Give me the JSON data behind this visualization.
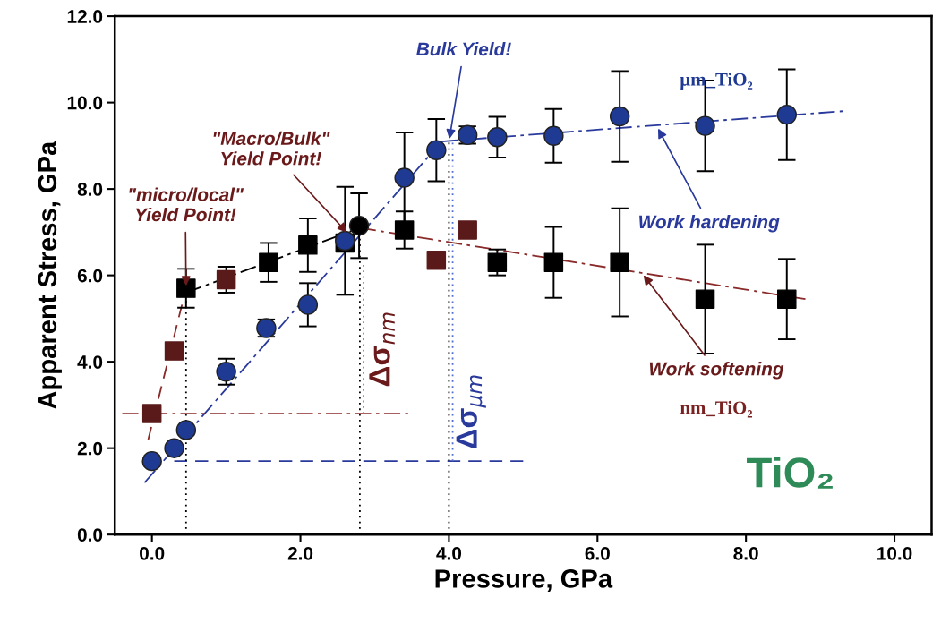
{
  "chart_data": {
    "type": "scatter",
    "xlabel": "Pressure, GPa",
    "ylabel": "Apparent Stress, GPa",
    "xlim": [
      -0.5,
      10.5
    ],
    "ylim": [
      0,
      12
    ],
    "xticks": [
      {
        "value": 0,
        "label": "0.0"
      },
      {
        "value": 2,
        "label": "2.0"
      },
      {
        "value": 4,
        "label": "4.0"
      },
      {
        "value": 6,
        "label": "6.0"
      },
      {
        "value": 8,
        "label": "8.0"
      },
      {
        "value": 10,
        "label": "10.0"
      }
    ],
    "yticks": [
      {
        "value": 0,
        "label": "0.0"
      },
      {
        "value": 2,
        "label": "2.0"
      },
      {
        "value": 4,
        "label": "4.0"
      },
      {
        "value": 6,
        "label": "6.0"
      },
      {
        "value": 8,
        "label": "8.0"
      },
      {
        "value": 10,
        "label": "10.0"
      },
      {
        "value": 12,
        "label": "12.0"
      }
    ],
    "grid": false,
    "legend": false,
    "series": [
      {
        "type": "line",
        "color": "#2a3a9c",
        "line_style": "dashdot",
        "x": [
          -0.1,
          3.9
        ],
        "values": [
          1.2,
          9.1
        ]
      },
      {
        "type": "line",
        "color": "#2a3a9c",
        "line_style": "dashdot",
        "x": [
          3.9,
          9.3
        ],
        "values": [
          9.1,
          9.8
        ]
      },
      {
        "type": "line",
        "color": "#8a2a2a",
        "line_style": "dashed",
        "x": [
          -0.05,
          0.46
        ],
        "values": [
          2.2,
          5.7
        ]
      },
      {
        "type": "line",
        "color": "#000000",
        "line_style": "dashdot",
        "x": [
          0.46,
          2.8
        ],
        "values": [
          5.6,
          7.1
        ]
      },
      {
        "type": "line",
        "color": "#8a2a2a",
        "line_style": "dashdot",
        "x": [
          2.8,
          8.8
        ],
        "values": [
          7.1,
          5.45
        ]
      },
      {
        "type": "line",
        "color": "#8a2a2a",
        "line_style": "dashdot",
        "x": [
          -0.4,
          3.45
        ],
        "values": [
          2.8,
          2.8
        ]
      },
      {
        "type": "line",
        "color": "#2a3a9c",
        "line_style": "dashed",
        "x": [
          0.3,
          5.0
        ],
        "values": [
          1.7,
          1.7
        ]
      },
      {
        "type": "line",
        "color": "#000000",
        "line_style": "dotted",
        "x": [
          0.46,
          0.46
        ],
        "values": [
          0,
          5.7
        ]
      },
      {
        "type": "line",
        "color": "#000000",
        "line_style": "dotted",
        "x": [
          2.8,
          2.8
        ],
        "values": [
          0,
          7.1
        ]
      },
      {
        "type": "line",
        "color": "#000000",
        "line_style": "dotted",
        "x": [
          4.0,
          4.0
        ],
        "values": [
          0,
          9.1
        ]
      },
      {
        "type": "line",
        "color": "#d06060",
        "line_style": "dotted",
        "x": [
          2.85,
          2.85
        ],
        "values": [
          2.8,
          6.3
        ]
      },
      {
        "type": "line",
        "color": "#5070d0",
        "line_style": "dotted",
        "x": [
          4.05,
          4.05
        ],
        "values": [
          1.7,
          9.1
        ]
      },
      {
        "name": "nm_TiO₂",
        "marker": "square",
        "color": "#7a2222",
        "colors": [
          "#5a1a1a",
          "#5a1a1a",
          "#000000",
          "#5a1a1a",
          "#000000",
          "#000000",
          "#000000",
          "#000000",
          "#5a1a1a",
          "#5a1a1a",
          "#000000",
          "#000000",
          "#000000",
          "#000000",
          "#000000"
        ],
        "x": [
          0,
          0.3,
          0.46,
          1.0,
          1.57,
          2.1,
          2.6,
          3.4,
          3.83,
          4.25,
          4.65,
          5.41,
          6.3,
          7.45,
          8.55
        ],
        "values": [
          2.8,
          4.25,
          5.7,
          5.9,
          6.3,
          6.7,
          6.75,
          7.05,
          6.35,
          7.05,
          6.3,
          6.3,
          6.3,
          5.45,
          5.45
        ],
        "errors": [
          null,
          null,
          0.45,
          0.3,
          0.45,
          0.62,
          null,
          0.43,
          null,
          null,
          0.3,
          0.82,
          1.25,
          1.26,
          0.93
        ]
      },
      {
        "marker": "circle",
        "color": "#000000",
        "x": [
          2.79
        ],
        "values": [
          7.15
        ],
        "errors": [
          0.75
        ]
      },
      {
        "name": "µm_TiO₂",
        "marker": "circle",
        "color": "#1f3a93",
        "x": [
          0,
          0.3,
          0.46,
          1.0,
          1.54,
          2.1,
          2.6,
          3.4,
          3.83,
          4.25,
          4.65,
          5.41,
          6.3,
          7.45,
          8.55
        ],
        "values": [
          1.7,
          2.0,
          2.42,
          3.77,
          4.78,
          5.32,
          6.8,
          8.26,
          8.9,
          9.25,
          9.2,
          9.23,
          9.68,
          9.46,
          9.72
        ],
        "errors": [
          null,
          null,
          null,
          0.3,
          0.2,
          0.5,
          1.25,
          1.05,
          0.72,
          0.2,
          0.47,
          0.62,
          1.05,
          1.05,
          1.05
        ]
      }
    ],
    "annotations": [
      {
        "text": "\"micro/local\"\nYield Point!",
        "x": 0.46,
        "y": 5.7
      },
      {
        "text": "\"Macro/Bulk\"\nYield Point!",
        "x": 2.65,
        "y": 6.95
      },
      {
        "text": "Bulk Yield!",
        "x": 4.0,
        "y": 9.1
      },
      {
        "text": "Work hardening",
        "x": 6.8,
        "y": 9.45
      },
      {
        "text": "Work softening",
        "x": 6.6,
        "y": 6.05
      },
      "Δσ$_{nm}$",
      "Δσ$_{µm}$",
      "TiO₂"
    ]
  }
}
